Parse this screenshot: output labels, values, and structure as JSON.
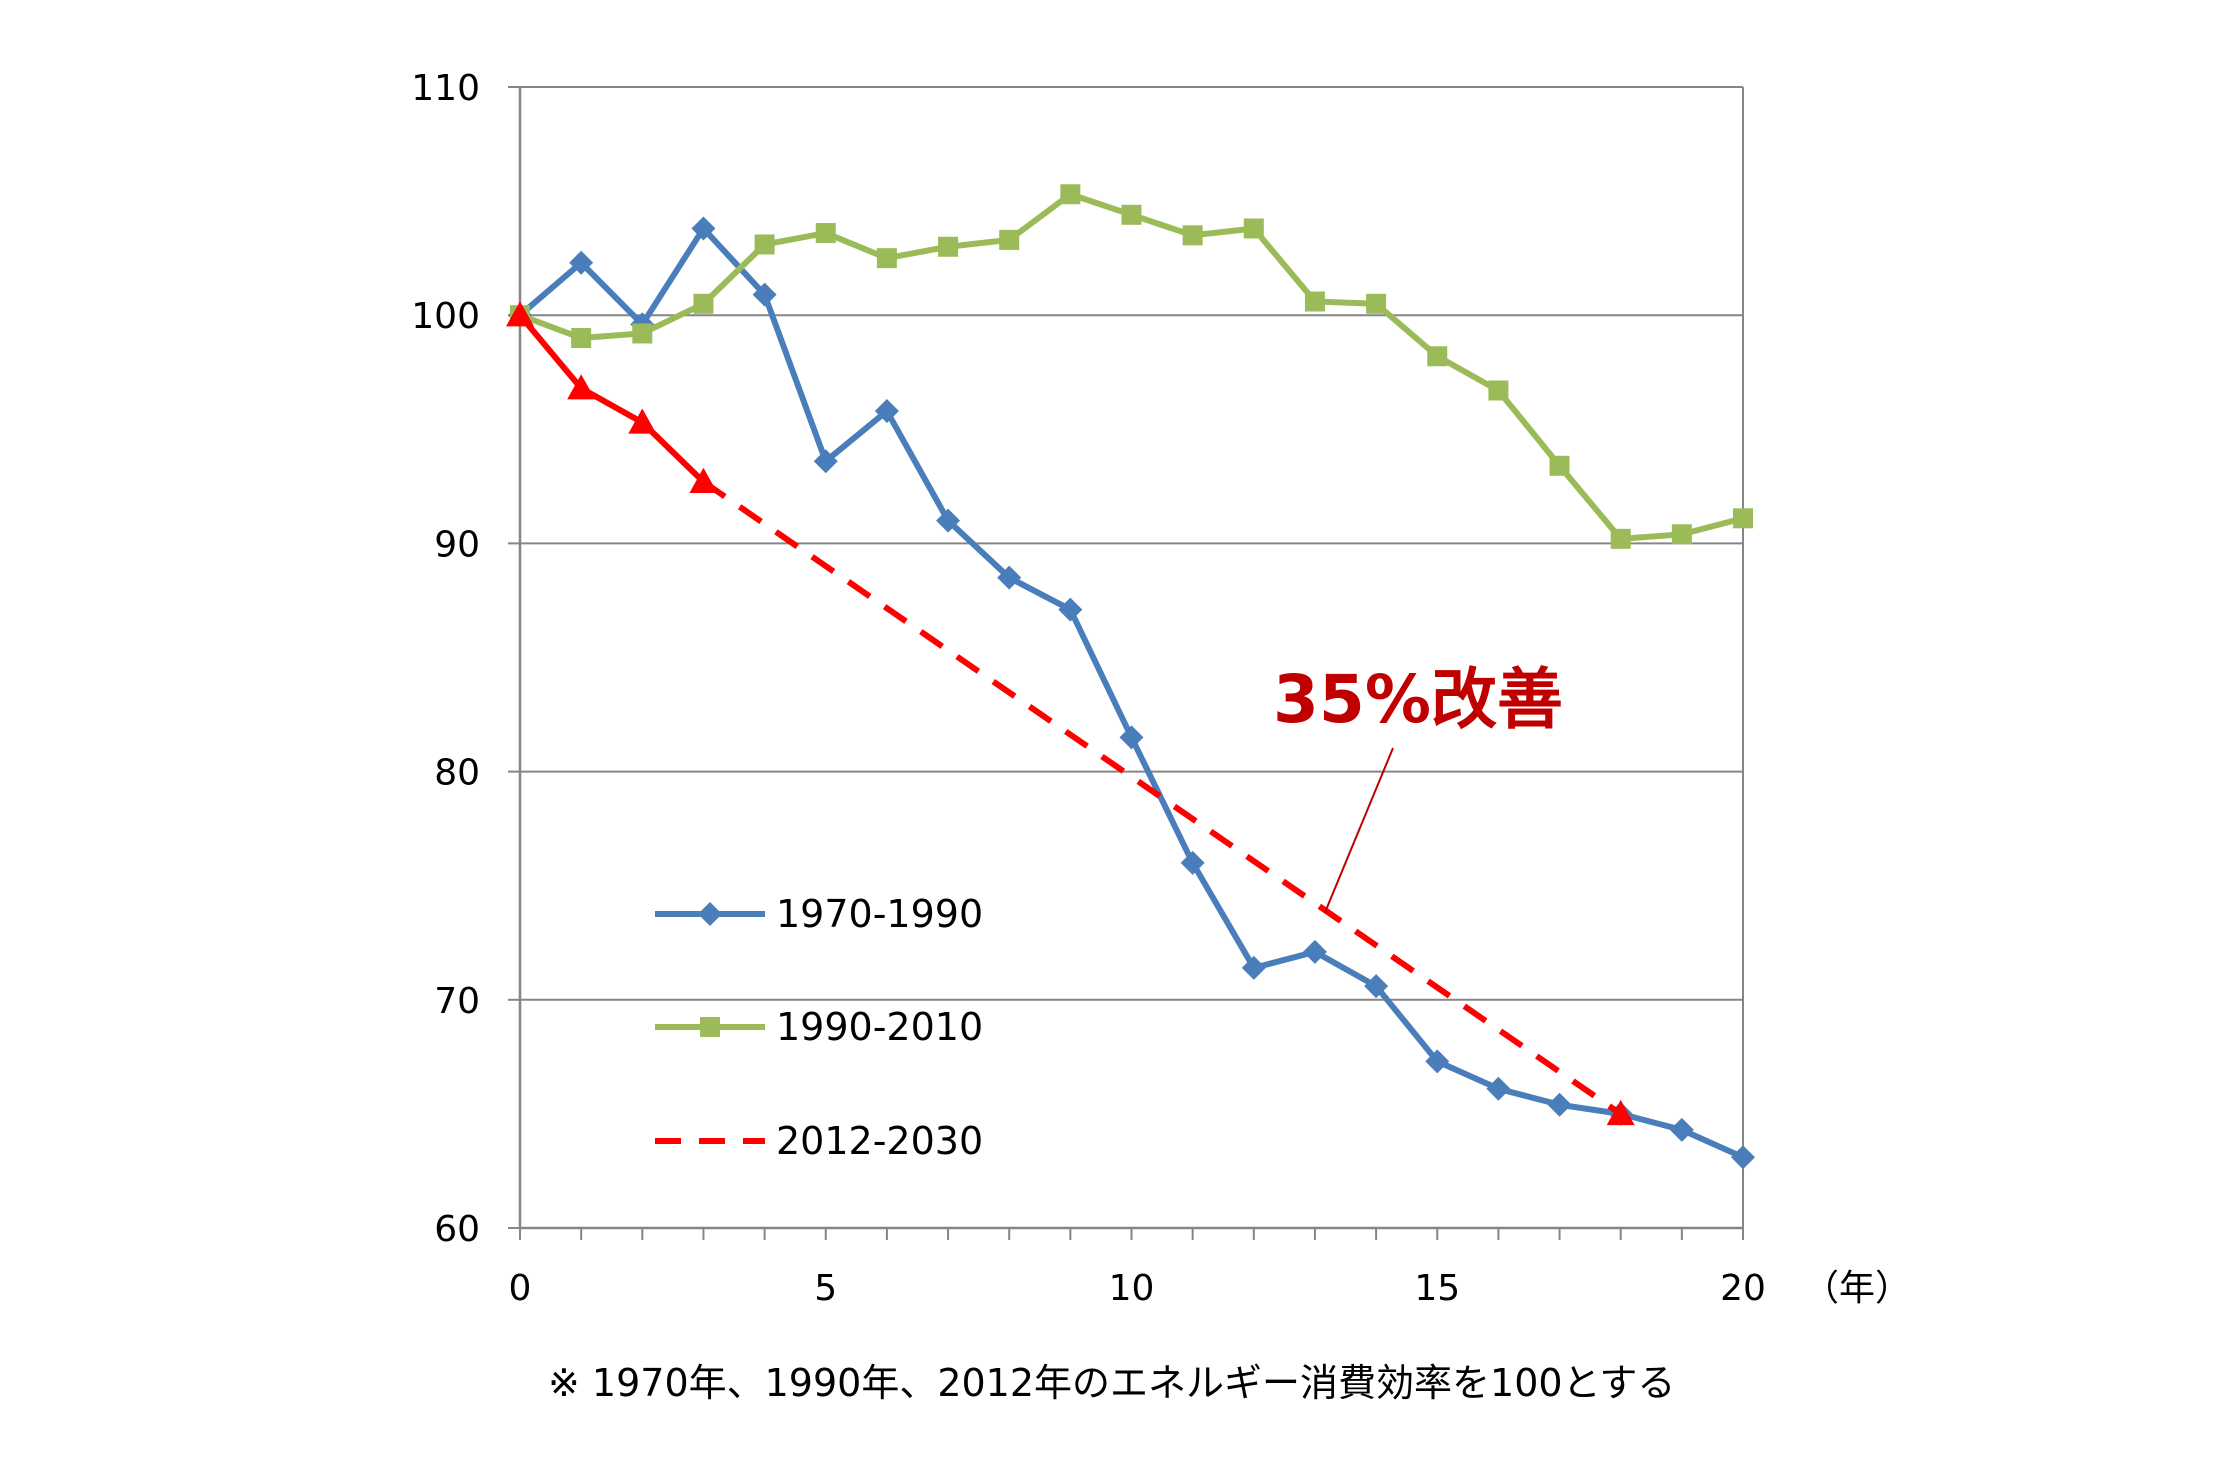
{
  "chart_data": {
    "type": "line",
    "title": "",
    "xlabel": "（年）",
    "ylabel": "",
    "xlim": [
      0,
      20
    ],
    "ylim": [
      60,
      110
    ],
    "xticks": [
      0,
      5,
      10,
      15,
      20
    ],
    "yticks": [
      60,
      70,
      80,
      90,
      100,
      110
    ],
    "grid": true,
    "legend_position": "lower-left",
    "series": [
      {
        "name": "1970-1990",
        "color": "#4a7ebb",
        "marker": "diamond",
        "style": "solid",
        "x": [
          0,
          1,
          2,
          3,
          4,
          5,
          6,
          7,
          8,
          9,
          10,
          11,
          12,
          13,
          14,
          15,
          16,
          17,
          18,
          19,
          20
        ],
        "values": [
          100,
          102.3,
          99.6,
          103.8,
          100.9,
          93.6,
          95.8,
          91.0,
          88.5,
          87.1,
          81.5,
          76.0,
          71.4,
          72.1,
          70.6,
          67.3,
          66.1,
          65.4,
          65.0,
          64.3,
          63.1
        ]
      },
      {
        "name": "1990-2010",
        "color": "#9bbb59",
        "marker": "square",
        "style": "solid",
        "x": [
          0,
          1,
          2,
          3,
          4,
          5,
          6,
          7,
          8,
          9,
          10,
          11,
          12,
          13,
          14,
          15,
          16,
          17,
          18,
          19,
          20
        ],
        "values": [
          100,
          99.0,
          99.2,
          100.5,
          103.1,
          103.6,
          102.5,
          103.0,
          103.3,
          105.3,
          104.4,
          103.5,
          103.8,
          100.6,
          100.5,
          98.2,
          96.7,
          93.4,
          90.2,
          90.4,
          91.1
        ]
      },
      {
        "name": "2012-2030",
        "color": "#ff0000",
        "marker": "triangle",
        "style": "solid+dashed",
        "x": [
          0,
          1,
          2,
          3
        ],
        "values": [
          100,
          96.8,
          95.3,
          92.7
        ],
        "projection": {
          "x": [
            3,
            18
          ],
          "values": [
            92.7,
            65.0
          ]
        }
      }
    ],
    "annotations": [
      {
        "text": "35%改善",
        "color": "#c00000",
        "points_to_x": 13,
        "points_to_y": 74
      }
    ],
    "footnote": "※ 1970年、1990年、2012年のエネルギー消費効率を100とする"
  }
}
